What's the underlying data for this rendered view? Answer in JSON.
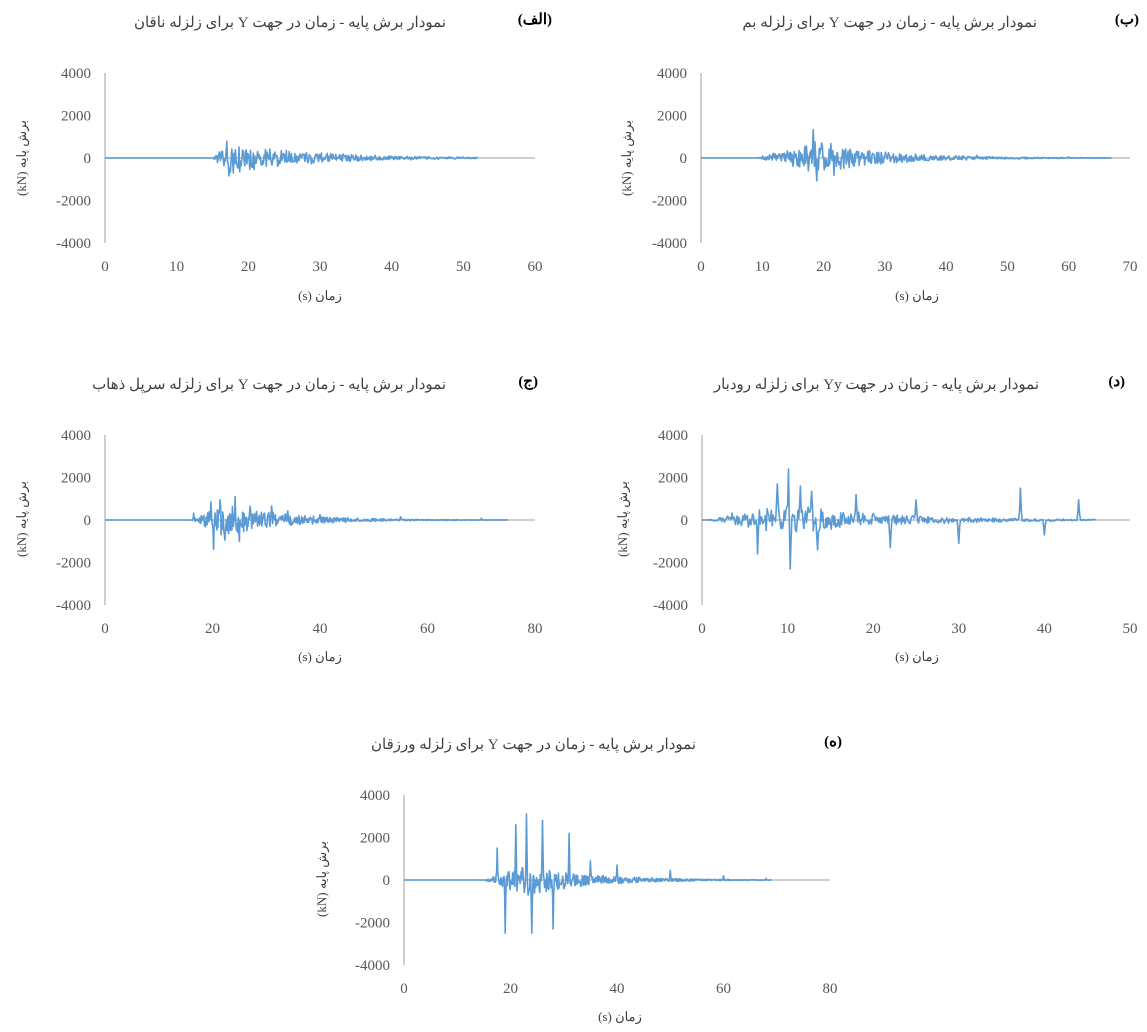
{
  "chart_data": [
    {
      "id": "a",
      "type": "line",
      "tag": "(الف)",
      "title": "نمودار برش پایه - زمان در جهت Y برای زلزله ناقان",
      "xlabel": "زمان (s)",
      "ylabel": "برش پایه  (kN)",
      "xlim": [
        0,
        60
      ],
      "xticks": [
        0,
        10,
        20,
        30,
        40,
        50,
        60
      ],
      "ylim": [
        -4000,
        4000
      ],
      "yticks": [
        -4000,
        -2000,
        0,
        2000,
        4000
      ],
      "grid": false,
      "line_color": "#5B9BD5",
      "series": [
        {
          "x_range": [
            0,
            52
          ],
          "onset": 15,
          "peak_time": 17,
          "peaks": [
            [
              17.0,
              780
            ],
            [
              17.3,
              -840
            ],
            [
              16.6,
              -360
            ],
            [
              17.7,
              420
            ],
            [
              18.4,
              -320
            ],
            [
              19.3,
              300
            ],
            [
              21.0,
              -250
            ],
            [
              23.5,
              180
            ],
            [
              25.5,
              -150
            ],
            [
              30.0,
              120
            ],
            [
              40.0,
              80
            ],
            [
              50.0,
              50
            ]
          ]
        }
      ]
    },
    {
      "id": "b",
      "type": "line",
      "tag": "(ب)",
      "title": "نمودار برش پایه - زمان در جهت Y برای زلزله بم",
      "xlabel": "زمان (s)",
      "ylabel": "برش پایه  (kN)",
      "xlim": [
        0,
        70
      ],
      "xticks": [
        0,
        10,
        20,
        30,
        40,
        50,
        60,
        70
      ],
      "ylim": [
        -4000,
        4000
      ],
      "yticks": [
        -4000,
        -2000,
        0,
        2000,
        4000
      ],
      "grid": false,
      "line_color": "#5B9BD5",
      "series": [
        {
          "x_range": [
            0,
            67
          ],
          "onset": 9,
          "peak_time": 18.5,
          "peaks": [
            [
              18.3,
              1330
            ],
            [
              18.9,
              -1080
            ],
            [
              17.5,
              -600
            ],
            [
              19.7,
              700
            ],
            [
              21.2,
              680
            ],
            [
              21.7,
              -820
            ],
            [
              22.8,
              -520
            ],
            [
              24.0,
              320
            ],
            [
              28.0,
              220
            ],
            [
              35.0,
              180
            ],
            [
              45.0,
              120
            ],
            [
              60.0,
              60
            ]
          ]
        }
      ]
    },
    {
      "id": "c",
      "type": "line",
      "tag": "(ج)",
      "title": "نمودار برش پایه - زمان در جهت Y برای زلزله سرپل ذهاب",
      "xlabel": "زمان (s)",
      "ylabel": "برش پایه  (kN)",
      "xlim": [
        0,
        80
      ],
      "xticks": [
        0,
        20,
        40,
        60,
        80
      ],
      "ylim": [
        -4000,
        4000
      ],
      "yticks": [
        -4000,
        -2000,
        0,
        2000,
        4000
      ],
      "grid": false,
      "line_color": "#5B9BD5",
      "series": [
        {
          "x_range": [
            0,
            75
          ],
          "onset": 16,
          "peak_time": 22,
          "peaks": [
            [
              16.5,
              320
            ],
            [
              19.7,
              850
            ],
            [
              20.2,
              -1380
            ],
            [
              21.4,
              950
            ],
            [
              22.3,
              -950
            ],
            [
              24.2,
              1100
            ],
            [
              25.0,
              -1000
            ],
            [
              27.0,
              650
            ],
            [
              31.0,
              650
            ],
            [
              34.0,
              420
            ],
            [
              40.0,
              250
            ],
            [
              55.0,
              150
            ],
            [
              70.0,
              80
            ]
          ]
        }
      ]
    },
    {
      "id": "d",
      "type": "line",
      "tag": "(د)",
      "title": "نمودار برش پایه - زمان در جهت Yy برای زلزله رودبار",
      "xlabel": "زمان (s)",
      "ylabel": "برش پایه  (kN)",
      "xlim": [
        0,
        50
      ],
      "xticks": [
        0,
        10,
        20,
        30,
        40,
        50
      ],
      "ylim": [
        -4000,
        4000
      ],
      "yticks": [
        -4000,
        -2000,
        0,
        2000,
        4000
      ],
      "grid": false,
      "line_color": "#5B9BD5",
      "series": [
        {
          "x_range": [
            0,
            46
          ],
          "onset": 0.5,
          "peak_time": 10,
          "peaks": [
            [
              3.5,
              320
            ],
            [
              6.5,
              -1600
            ],
            [
              8.8,
              1700
            ],
            [
              10.1,
              2400
            ],
            [
              10.3,
              -2300
            ],
            [
              11.5,
              1600
            ],
            [
              12.8,
              1350
            ],
            [
              13.5,
              -1400
            ],
            [
              18.0,
              1200
            ],
            [
              22.0,
              -1300
            ],
            [
              25.0,
              950
            ],
            [
              30.0,
              -1100
            ],
            [
              37.2,
              1500
            ],
            [
              40.0,
              -700
            ],
            [
              44.0,
              950
            ]
          ]
        }
      ]
    },
    {
      "id": "e",
      "type": "line",
      "tag": "(ه)",
      "title": "نمودار برش پایه - زمان در جهت Y برای زلزله ورزقان",
      "xlabel": "زمان (s)",
      "ylabel": "برش پایه  (kN)",
      "xlim": [
        0,
        80
      ],
      "xticks": [
        0,
        20,
        40,
        60,
        80
      ],
      "ylim": [
        -4000,
        4000
      ],
      "yticks": [
        -4000,
        -2000,
        0,
        2000,
        4000
      ],
      "grid": false,
      "line_color": "#5B9BD5",
      "series": [
        {
          "x_range": [
            0,
            69
          ],
          "onset": 15,
          "peak_time": 23,
          "peaks": [
            [
              17.5,
              1500
            ],
            [
              19.0,
              -2500
            ],
            [
              21.0,
              2600
            ],
            [
              23.0,
              3100
            ],
            [
              24.0,
              -2500
            ],
            [
              26.0,
              2800
            ],
            [
              28.0,
              -2300
            ],
            [
              31.0,
              2200
            ],
            [
              35.0,
              900
            ],
            [
              40.0,
              700
            ],
            [
              50.0,
              450
            ],
            [
              60.0,
              200
            ],
            [
              68.0,
              80
            ]
          ]
        }
      ]
    }
  ]
}
